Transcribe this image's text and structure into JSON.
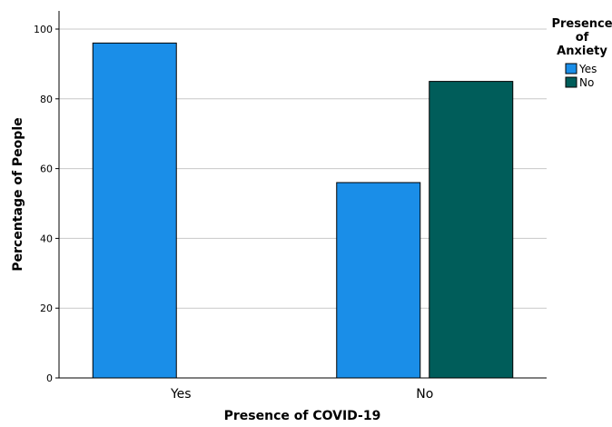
{
  "chart_data": {
    "type": "bar",
    "categories": [
      "Yes",
      "No"
    ],
    "series": [
      {
        "name": "Yes",
        "values": [
          96,
          56
        ],
        "color": "#1a8ee8"
      },
      {
        "name": "No",
        "values": [
          null,
          85
        ],
        "color": "#005d5a"
      }
    ],
    "xlabel": "Presence of COVID-19",
    "ylabel": "Percentage of People",
    "ylim": [
      0,
      100
    ],
    "yticks": [
      0,
      20,
      40,
      60,
      80,
      100
    ],
    "grid": true,
    "legend": {
      "title_lines": [
        "Presence",
        "of",
        "Anxiety"
      ],
      "placement": "top-right"
    }
  }
}
